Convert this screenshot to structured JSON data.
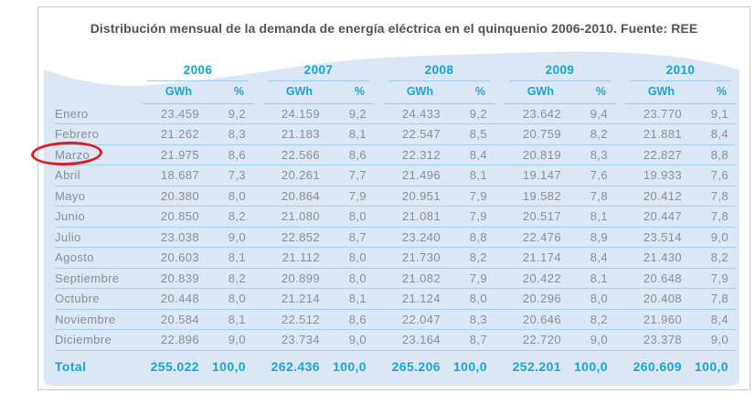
{
  "title": "Distribución mensual de la demanda de energía eléctrica en el quinquenio 2006-2010. Fuente: REE",
  "table": {
    "years": [
      "2006",
      "2007",
      "2008",
      "2009",
      "2010"
    ],
    "unit_header": {
      "gwh": "GWh",
      "pct": "%"
    },
    "rows": [
      {
        "month": "Enero",
        "values": [
          [
            "23.459",
            "9,2"
          ],
          [
            "24.159",
            "9,2"
          ],
          [
            "24.433",
            "9,2"
          ],
          [
            "23.642",
            "9,4"
          ],
          [
            "23.770",
            "9,1"
          ]
        ]
      },
      {
        "month": "Febrero",
        "values": [
          [
            "21.262",
            "8,3"
          ],
          [
            "21.183",
            "8,1"
          ],
          [
            "22.547",
            "8,5"
          ],
          [
            "20.759",
            "8,2"
          ],
          [
            "21.881",
            "8,4"
          ]
        ]
      },
      {
        "month": "Marzo",
        "values": [
          [
            "21.975",
            "8,6"
          ],
          [
            "22.566",
            "8,6"
          ],
          [
            "22.312",
            "8,4"
          ],
          [
            "20.819",
            "8,3"
          ],
          [
            "22.827",
            "8,8"
          ]
        ]
      },
      {
        "month": "Abril",
        "values": [
          [
            "18.687",
            "7,3"
          ],
          [
            "20.261",
            "7,7"
          ],
          [
            "21.496",
            "8,1"
          ],
          [
            "19.147",
            "7,6"
          ],
          [
            "19.933",
            "7,6"
          ]
        ]
      },
      {
        "month": "Mayo",
        "values": [
          [
            "20.380",
            "8,0"
          ],
          [
            "20.864",
            "7,9"
          ],
          [
            "20.951",
            "7,9"
          ],
          [
            "19.582",
            "7,8"
          ],
          [
            "20.412",
            "7,8"
          ]
        ]
      },
      {
        "month": "Junio",
        "values": [
          [
            "20.850",
            "8,2"
          ],
          [
            "21.080",
            "8,0"
          ],
          [
            "21.081",
            "7,9"
          ],
          [
            "20.517",
            "8,1"
          ],
          [
            "20.447",
            "7,8"
          ]
        ]
      },
      {
        "month": "Julio",
        "values": [
          [
            "23.038",
            "9,0"
          ],
          [
            "22.852",
            "8,7"
          ],
          [
            "23.240",
            "8,8"
          ],
          [
            "22.476",
            "8,9"
          ],
          [
            "23.514",
            "9,0"
          ]
        ]
      },
      {
        "month": "Agosto",
        "values": [
          [
            "20.603",
            "8,1"
          ],
          [
            "21.112",
            "8,0"
          ],
          [
            "21.730",
            "8,2"
          ],
          [
            "21.174",
            "8,4"
          ],
          [
            "21.430",
            "8,2"
          ]
        ]
      },
      {
        "month": "Septiembre",
        "values": [
          [
            "20.839",
            "8,2"
          ],
          [
            "20.899",
            "8,0"
          ],
          [
            "21.082",
            "7,9"
          ],
          [
            "20.422",
            "8,1"
          ],
          [
            "20.648",
            "7,9"
          ]
        ]
      },
      {
        "month": "Octubre",
        "values": [
          [
            "20.448",
            "8,0"
          ],
          [
            "21.214",
            "8,1"
          ],
          [
            "21.124",
            "8,0"
          ],
          [
            "20.296",
            "8,0"
          ],
          [
            "20.408",
            "7,8"
          ]
        ]
      },
      {
        "month": "Noviembre",
        "values": [
          [
            "20.584",
            "8,1"
          ],
          [
            "22.512",
            "8,6"
          ],
          [
            "22.047",
            "8,3"
          ],
          [
            "20.646",
            "8,2"
          ],
          [
            "21.960",
            "8,4"
          ]
        ]
      },
      {
        "month": "Diciembre",
        "values": [
          [
            "22.896",
            "9,0"
          ],
          [
            "23.734",
            "9,0"
          ],
          [
            "23.164",
            "8,7"
          ],
          [
            "22.720",
            "9,0"
          ],
          [
            "23.378",
            "9,0"
          ]
        ]
      }
    ],
    "total": {
      "label": "Total",
      "values": [
        [
          "255.022",
          "100,0"
        ],
        [
          "262.436",
          "100,0"
        ],
        [
          "265.206",
          "100,0"
        ],
        [
          "252.201",
          "100,0"
        ],
        [
          "260.609",
          "100,0"
        ]
      ]
    }
  },
  "annotation": {
    "type": "hand-drawn-ellipse",
    "circled_month": "Marzo",
    "color": "#dd1b20"
  },
  "colors": {
    "accent_cyan": "#18a5d8",
    "panel_blue": "#dbe7f4",
    "separator_line": "#a4cfe8",
    "data_text_gray": "#8b8f93",
    "title_text": "#4f545a",
    "frame_border": "#c7c9cb"
  }
}
